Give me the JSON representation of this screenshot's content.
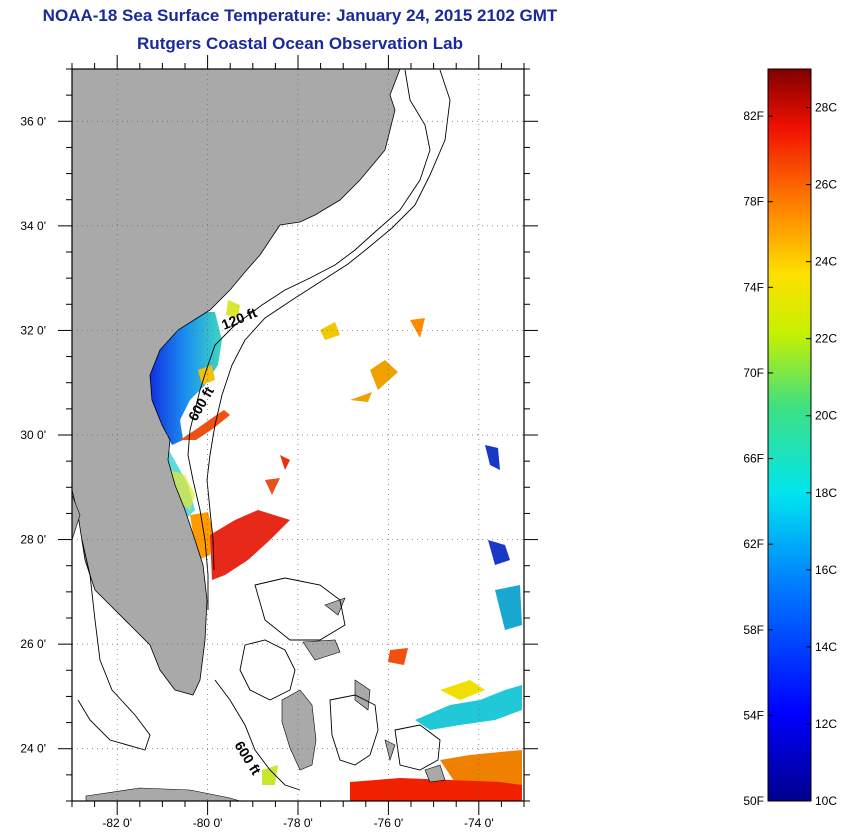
{
  "header": {
    "title": "NOAA-18 Sea Surface Temperature:  January 24, 2015 2102 GMT",
    "subtitle": "Rutgers Coastal Ocean Observation Lab"
  },
  "map": {
    "x_ticks": [
      {
        "value": -82,
        "label": "-82 0'"
      },
      {
        "value": -80,
        "label": "-80 0'"
      },
      {
        "value": -78,
        "label": "-78 0'"
      },
      {
        "value": -76,
        "label": "-76 0'"
      },
      {
        "value": -74,
        "label": "-74 0'"
      }
    ],
    "y_ticks": [
      {
        "value": 36,
        "label": "36 0'"
      },
      {
        "value": 34,
        "label": "34 0'"
      },
      {
        "value": 32,
        "label": "32 0'"
      },
      {
        "value": 30,
        "label": "30 0'"
      },
      {
        "value": 28,
        "label": "28 0'"
      },
      {
        "value": 26,
        "label": "26 0'"
      },
      {
        "value": 24,
        "label": "24 0'"
      }
    ],
    "grid": "dotted",
    "contour_labels": [
      "120 ft",
      "600 ft",
      "600 ft"
    ],
    "colors": {
      "land": "#a9a9a9",
      "water": "#ffffff",
      "frame": "#000000"
    }
  },
  "colorbar": {
    "min_c": 10,
    "max_c": 29,
    "celsius_labels": [
      "28C",
      "26C",
      "24C",
      "22C",
      "20C",
      "18C",
      "16C",
      "14C",
      "12C",
      "10C"
    ],
    "fahrenheit_labels": [
      "82F",
      "78F",
      "74F",
      "70F",
      "66F",
      "62F",
      "58F",
      "54F",
      "50F"
    ]
  }
}
